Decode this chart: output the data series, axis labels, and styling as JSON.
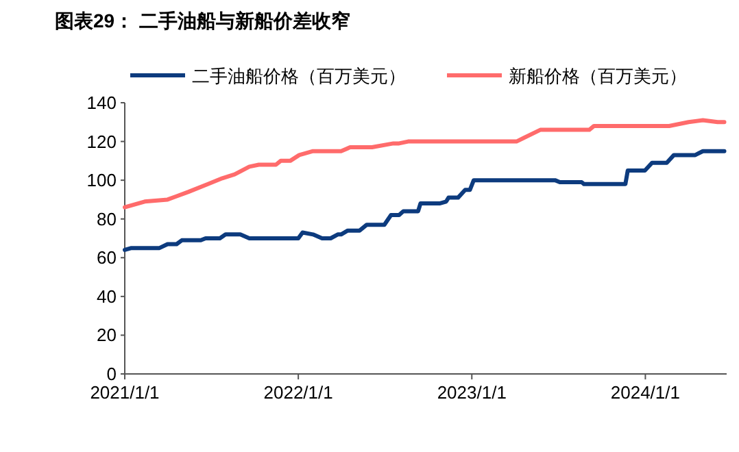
{
  "chart_data": {
    "type": "line",
    "title": "图表29：  二手油船与新船价差收窄",
    "xlim": [
      "2021-01-01",
      "2024-06-20"
    ],
    "xticks": [
      {
        "value": "2021-01-01",
        "label": "2021/1/1"
      },
      {
        "value": "2022-01-01",
        "label": "2022/1/1"
      },
      {
        "value": "2023-01-01",
        "label": "2023/1/1"
      },
      {
        "value": "2024-01-01",
        "label": "2024/1/1"
      }
    ],
    "ylim": [
      0,
      140
    ],
    "yticks": [
      0,
      20,
      40,
      60,
      80,
      100,
      120,
      140
    ],
    "grid": false,
    "legend": "top",
    "line_style": "solid",
    "marker": "none",
    "series": [
      {
        "name": "二手油船价格（百万美元）",
        "color": "#0d3b7e",
        "x": [
          "2021-01-01",
          "2021-01-15",
          "2021-03-15",
          "2021-04-01",
          "2021-04-20",
          "2021-05-01",
          "2021-06-10",
          "2021-06-20",
          "2021-07-20",
          "2021-08-01",
          "2021-09-01",
          "2021-09-20",
          "2022-01-01",
          "2022-01-10",
          "2022-02-01",
          "2022-02-20",
          "2022-03-10",
          "2022-03-25",
          "2022-04-01",
          "2022-04-15",
          "2022-05-10",
          "2022-05-25",
          "2022-07-01",
          "2022-07-15",
          "2022-08-01",
          "2022-08-10",
          "2022-09-10",
          "2022-09-15",
          "2022-10-25",
          "2022-11-08",
          "2022-11-13",
          "2022-12-03",
          "2022-12-18",
          "2022-12-28",
          "2023-01-05",
          "2023-06-25",
          "2023-07-05",
          "2023-08-20",
          "2023-08-25",
          "2023-11-20",
          "2023-11-25",
          "2023-12-31",
          "2024-01-15",
          "2024-02-15",
          "2024-03-01",
          "2024-04-15",
          "2024-05-01",
          "2024-06-15"
        ],
        "values": [
          64,
          65,
          65,
          67,
          67,
          69,
          69,
          70,
          70,
          72,
          72,
          70,
          70,
          73,
          72,
          70,
          70,
          72,
          72,
          74,
          74,
          77,
          77,
          82,
          82,
          84,
          84,
          88,
          88,
          89,
          91,
          91,
          95,
          95,
          100,
          100,
          99,
          99,
          98,
          98,
          105,
          105,
          109,
          109,
          113,
          113,
          115,
          115
        ]
      },
      {
        "name": "新船价格（百万美元）",
        "color": "#ff6b6b",
        "x": [
          "2021-01-01",
          "2021-02-12",
          "2021-04-01",
          "2021-05-15",
          "2021-06-25",
          "2021-07-25",
          "2021-08-20",
          "2021-09-20",
          "2021-10-10",
          "2021-11-15",
          "2021-11-25",
          "2021-12-15",
          "2022-01-03",
          "2022-02-01",
          "2022-04-01",
          "2022-04-20",
          "2022-06-05",
          "2022-07-20",
          "2022-08-01",
          "2022-08-20",
          "2023-04-05",
          "2023-05-25",
          "2023-09-05",
          "2023-09-15",
          "2024-02-20",
          "2024-04-01",
          "2024-05-01",
          "2024-06-01",
          "2024-06-15"
        ],
        "values": [
          86,
          89,
          90,
          94,
          98,
          101,
          103,
          107,
          108,
          108,
          110,
          110,
          113,
          115,
          115,
          117,
          117,
          119,
          119,
          120,
          120,
          126,
          126,
          128,
          128,
          130,
          131,
          130,
          130
        ]
      }
    ]
  }
}
